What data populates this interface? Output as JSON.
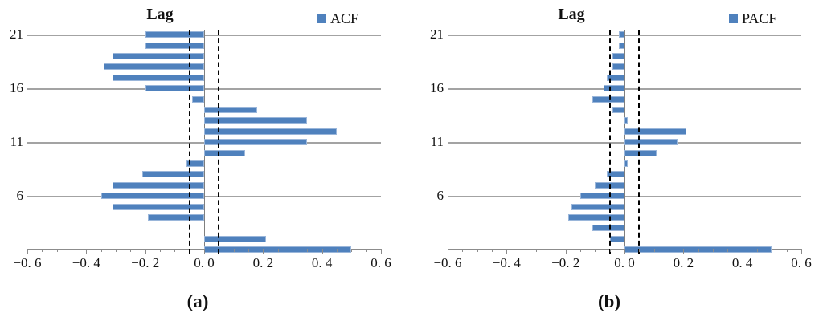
{
  "colors": {
    "bar_fill": "#4f81bd",
    "bar_border": "#9ab6da",
    "gridline": "#a3a3a3",
    "axis_line": "#8c8c8c",
    "zero_line": "#7f7f7f",
    "significance_line": "#000000",
    "text": "#111111",
    "background": "#ffffff"
  },
  "chart_data": [
    {
      "type": "bar",
      "orientation": "horizontal",
      "panel_label": "(a)",
      "title": "Lag",
      "legend": {
        "label": "ACF",
        "position": "top-right"
      },
      "x_axis": {
        "min": -0.6,
        "max": 0.6,
        "major_tick_step": 0.2,
        "minor_tick_step": 0.05,
        "tick_labels": [
          "−0. 6",
          "−0. 4",
          "−0. 2",
          "0. 0",
          "0. 2",
          "0. 4",
          "0. 6"
        ]
      },
      "y_axis": {
        "labeled_lags": [
          21,
          16,
          11,
          6
        ]
      },
      "significance_bounds": [
        -0.05,
        0.05
      ],
      "grid": true,
      "lags": [
        21,
        20,
        19,
        18,
        17,
        16,
        15,
        14,
        13,
        12,
        11,
        10,
        9,
        8,
        7,
        6,
        5,
        4,
        3,
        2,
        1
      ],
      "values": [
        -0.2,
        -0.2,
        -0.31,
        -0.34,
        -0.31,
        -0.2,
        -0.04,
        0.18,
        0.35,
        0.45,
        0.35,
        0.14,
        -0.06,
        -0.21,
        -0.31,
        -0.35,
        -0.31,
        -0.19,
        0.0,
        0.21,
        0.5
      ]
    },
    {
      "type": "bar",
      "orientation": "horizontal",
      "panel_label": "(b)",
      "title": "Lag",
      "legend": {
        "label": "PACF",
        "position": "top-right"
      },
      "x_axis": {
        "min": -0.6,
        "max": 0.6,
        "major_tick_step": 0.2,
        "minor_tick_step": 0.05,
        "tick_labels": [
          "−0. 6",
          "−0. 4",
          "−0. 2",
          "0. 0",
          "0. 2",
          "0. 4",
          "0. 6"
        ]
      },
      "y_axis": {
        "labeled_lags": [
          21,
          16,
          11,
          6
        ]
      },
      "significance_bounds": [
        -0.05,
        0.05
      ],
      "grid": true,
      "lags": [
        21,
        20,
        19,
        18,
        17,
        16,
        15,
        14,
        13,
        12,
        11,
        10,
        9,
        8,
        7,
        6,
        5,
        4,
        3,
        2,
        1
      ],
      "values": [
        -0.02,
        -0.02,
        -0.04,
        -0.04,
        -0.06,
        -0.07,
        -0.11,
        -0.04,
        0.01,
        0.21,
        0.18,
        0.11,
        0.01,
        -0.06,
        -0.1,
        -0.15,
        -0.18,
        -0.19,
        -0.11,
        -0.05,
        0.5
      ]
    }
  ]
}
